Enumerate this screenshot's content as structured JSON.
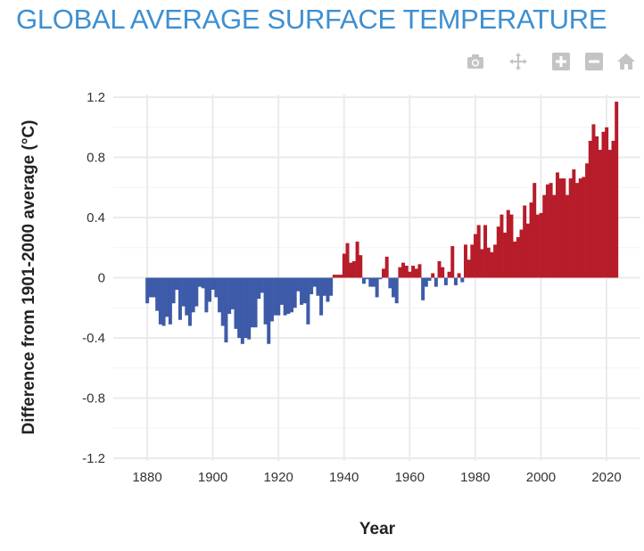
{
  "title": "GLOBAL AVERAGE SURFACE TEMPERATURE",
  "toolbar": [
    {
      "icon": "camera-icon",
      "label": "Download plot"
    },
    {
      "icon": "pan-icon",
      "label": "Pan"
    },
    {
      "icon": "zoom-in-icon",
      "label": "Zoom in"
    },
    {
      "icon": "zoom-out-icon",
      "label": "Zoom out"
    },
    {
      "icon": "home-icon",
      "label": "Reset axes"
    }
  ],
  "colors": {
    "positive": "#b71c2a",
    "negative": "#3d5ba8",
    "title": "#3e8fd0"
  },
  "chart_data": {
    "type": "bar",
    "xlabel": "Year",
    "ylabel": "Difference from 1901-2000 average (°C)",
    "xlim": [
      1870,
      2030
    ],
    "ylim": [
      -1.2,
      1.2
    ],
    "xticks": [
      "1880",
      "1900",
      "1920",
      "1940",
      "1960",
      "1980",
      "2000",
      "2020"
    ],
    "yticks": [
      "1.2",
      "0.8",
      "0.4",
      "0",
      "-0.4",
      "-0.8",
      "-1.2"
    ],
    "grid": true,
    "x_start": 1880,
    "values": [
      -0.17,
      -0.13,
      -0.13,
      -0.22,
      -0.31,
      -0.32,
      -0.26,
      -0.31,
      -0.17,
      -0.08,
      -0.28,
      -0.19,
      -0.25,
      -0.32,
      -0.23,
      -0.19,
      -0.06,
      -0.07,
      -0.23,
      -0.16,
      -0.08,
      -0.13,
      -0.23,
      -0.32,
      -0.43,
      -0.24,
      -0.21,
      -0.34,
      -0.4,
      -0.44,
      -0.4,
      -0.41,
      -0.33,
      -0.33,
      -0.14,
      -0.1,
      -0.31,
      -0.44,
      -0.29,
      -0.25,
      -0.25,
      -0.18,
      -0.25,
      -0.24,
      -0.23,
      -0.2,
      -0.09,
      -0.18,
      -0.17,
      -0.31,
      -0.11,
      -0.06,
      -0.12,
      -0.25,
      -0.12,
      -0.16,
      -0.12,
      0.02,
      0.02,
      0.02,
      0.16,
      0.23,
      0.1,
      0.11,
      0.24,
      0.15,
      -0.04,
      -0.01,
      -0.06,
      -0.06,
      -0.13,
      -0.01,
      0.06,
      0.14,
      -0.07,
      -0.13,
      -0.17,
      0.07,
      0.1,
      0.08,
      0.04,
      0.08,
      0.06,
      0.09,
      -0.15,
      -0.06,
      -0.02,
      0.03,
      -0.06,
      0.11,
      0.07,
      -0.05,
      0.04,
      0.21,
      -0.05,
      0.03,
      -0.03,
      0.22,
      0.12,
      0.22,
      0.29,
      0.35,
      0.19,
      0.35,
      0.2,
      0.17,
      0.22,
      0.34,
      0.42,
      0.3,
      0.45,
      0.42,
      0.24,
      0.27,
      0.32,
      0.48,
      0.36,
      0.5,
      0.63,
      0.42,
      0.43,
      0.55,
      0.62,
      0.63,
      0.55,
      0.7,
      0.66,
      0.66,
      0.55,
      0.66,
      0.72,
      0.63,
      0.66,
      0.67,
      0.76,
      0.91,
      1.02,
      0.94,
      0.85,
      0.97,
      1.0,
      0.85,
      0.91,
      1.17
    ]
  }
}
